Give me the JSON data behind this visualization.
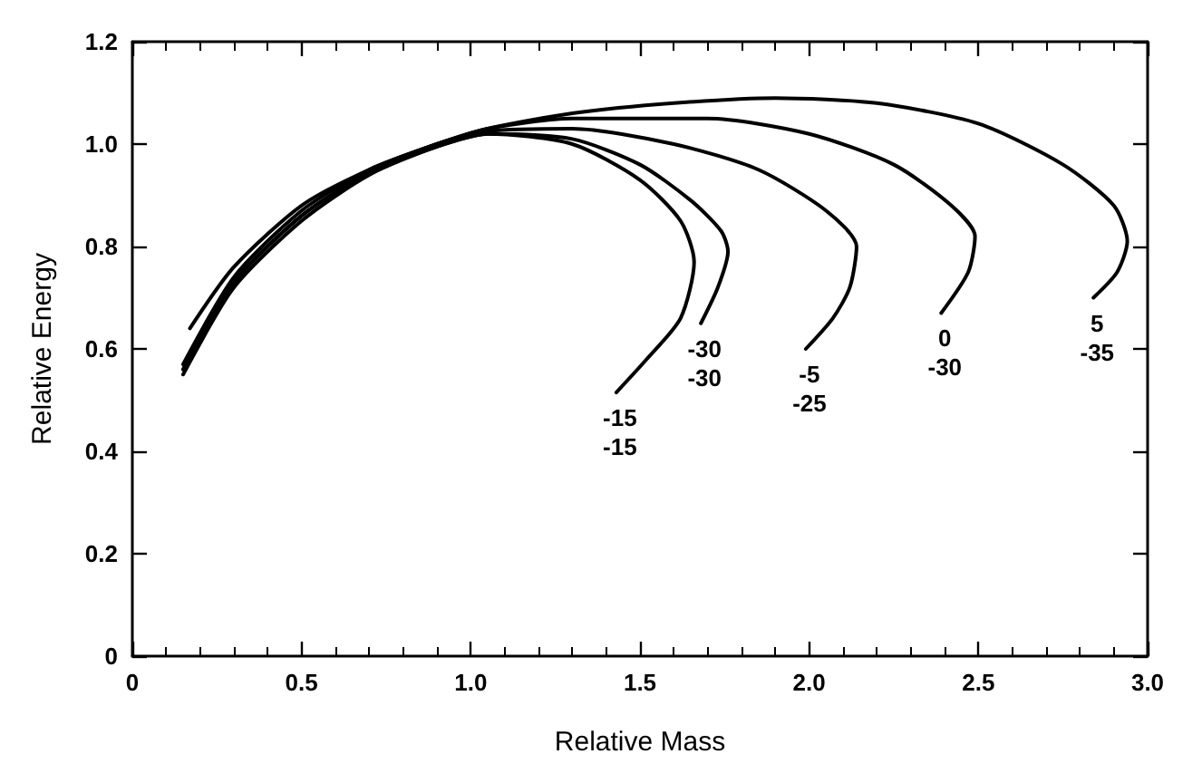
{
  "chart_data": {
    "type": "line",
    "xlabel": "Relative Mass",
    "ylabel": "Relative Energy",
    "xlim": [
      0,
      3
    ],
    "ylim": [
      0,
      1.2
    ],
    "xticks": [
      0,
      0.5,
      {
        "value": 1,
        "label": "1.0"
      },
      1.5,
      {
        "value": 2,
        "label": "2.0"
      },
      2.5,
      {
        "value": 3,
        "label": "3.0"
      }
    ],
    "yticks": [
      0,
      0.2,
      0.4,
      0.6,
      0.8,
      {
        "value": 1,
        "label": "1.0"
      },
      1.2
    ],
    "grid": false,
    "marker": "none",
    "line_style": "solid",
    "series": [
      {
        "color": "#000000",
        "x": [
          0.15,
          0.3,
          0.5,
          0.7,
          0.9,
          1.05,
          1.3,
          1.5,
          1.62,
          1.66,
          1.62,
          1.52,
          1.43
        ],
        "values": [
          0.55,
          0.72,
          0.85,
          0.94,
          0.995,
          1.02,
          1.0,
          0.93,
          0.85,
          0.77,
          0.66,
          0.58,
          0.515
        ]
      },
      {
        "color": "#000000",
        "x": [
          0.15,
          0.3,
          0.5,
          0.7,
          0.9,
          1.05,
          1.3,
          1.5,
          1.65,
          1.74,
          1.76,
          1.73,
          1.68
        ],
        "values": [
          0.56,
          0.73,
          0.86,
          0.945,
          0.995,
          1.02,
          1.01,
          0.96,
          0.89,
          0.83,
          0.79,
          0.72,
          0.65
        ]
      },
      {
        "color": "#000000",
        "x": [
          0.15,
          0.3,
          0.5,
          0.7,
          0.9,
          1.05,
          1.3,
          1.6,
          1.85,
          2.05,
          2.14,
          2.12,
          2.07,
          1.99
        ],
        "values": [
          0.56,
          0.73,
          0.86,
          0.945,
          1.0,
          1.025,
          1.03,
          1.0,
          0.95,
          0.87,
          0.8,
          0.72,
          0.66,
          0.6
        ]
      },
      {
        "color": "#000000",
        "x": [
          0.15,
          0.3,
          0.5,
          0.7,
          0.9,
          1.05,
          1.3,
          1.7,
          2.0,
          2.25,
          2.42,
          2.49,
          2.47,
          2.39
        ],
        "values": [
          0.57,
          0.74,
          0.87,
          0.95,
          1.0,
          1.03,
          1.05,
          1.05,
          1.02,
          0.96,
          0.88,
          0.82,
          0.75,
          0.67
        ]
      },
      {
        "color": "#000000",
        "x": [
          0.17,
          0.3,
          0.5,
          0.7,
          0.9,
          1.05,
          1.3,
          1.6,
          1.9,
          2.2,
          2.5,
          2.75,
          2.9,
          2.94,
          2.91,
          2.84
        ],
        "values": [
          0.64,
          0.76,
          0.88,
          0.95,
          1.0,
          1.03,
          1.06,
          1.08,
          1.09,
          1.08,
          1.04,
          0.96,
          0.88,
          0.81,
          0.75,
          0.7
        ]
      }
    ],
    "annotations": [
      {
        "text": "-15\n-15",
        "x": 1.43,
        "y": 0.515
      },
      {
        "text": "-30\n-30",
        "x": 1.68,
        "y": 0.65
      },
      {
        "text": "-5\n-25",
        "x": 1.99,
        "y": 0.6
      },
      {
        "text": "0\n-30",
        "x": 2.39,
        "y": 0.67
      },
      {
        "text": "5\n-35",
        "x": 2.84,
        "y": 0.7
      }
    ]
  }
}
